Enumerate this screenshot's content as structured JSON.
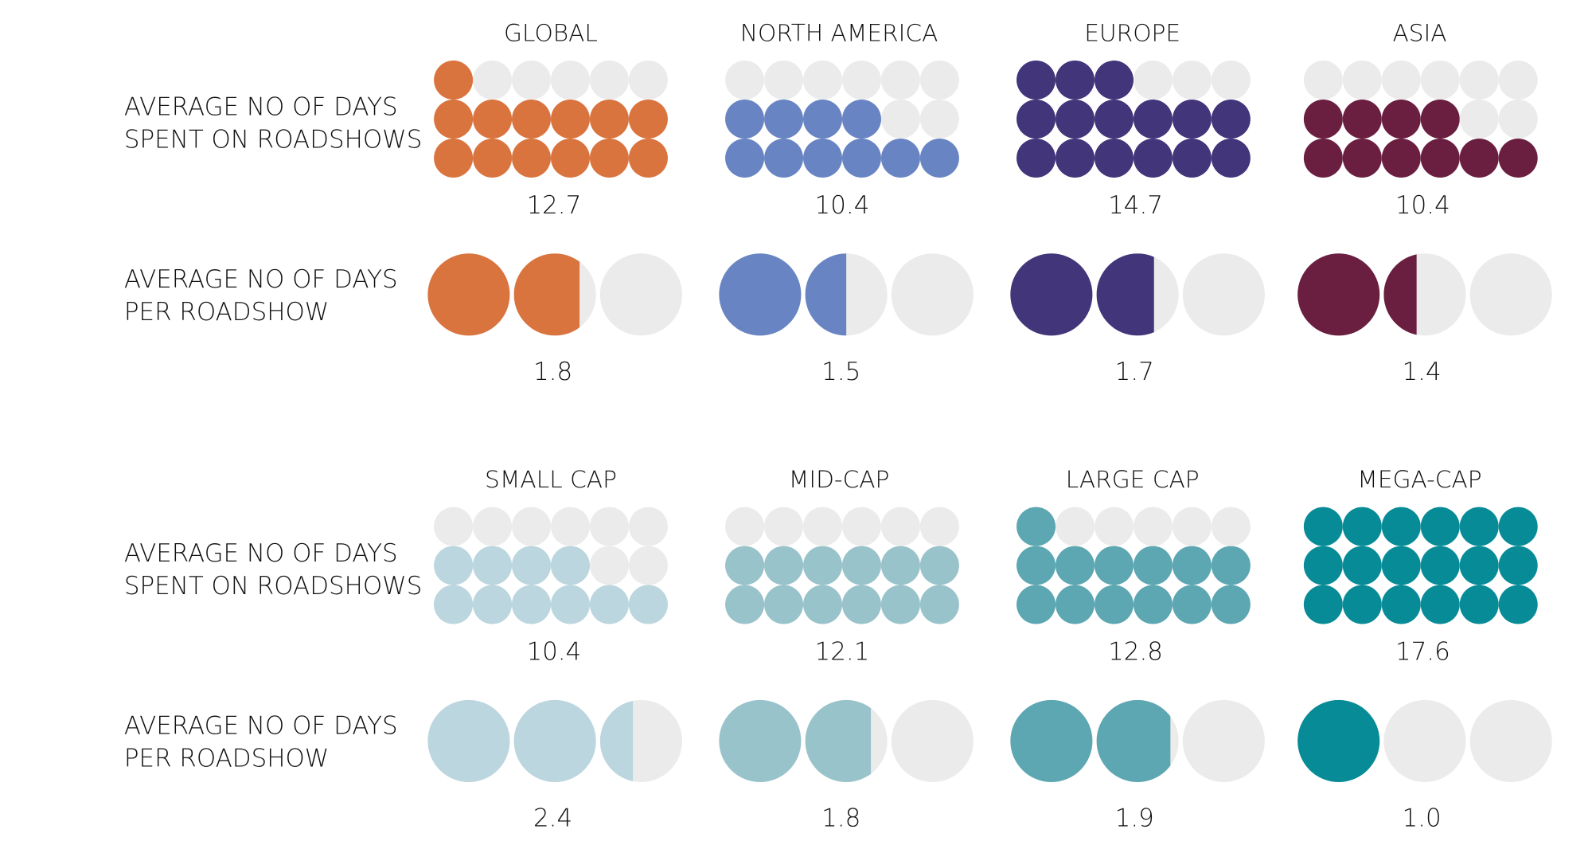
{
  "chart_data": [
    {
      "type": "pictogram",
      "row_labels": {
        "days_spent": [
          "AVERAGE NO OF DAYS",
          "SPENT ON ROADSHOWS"
        ],
        "days_per_roadshow": [
          "AVERAGE NO OF DAYS",
          "PER ROADSHOW"
        ]
      },
      "groups": [
        {
          "name": "GLOBAL",
          "color": "#DA743E",
          "days_spent": 12.7,
          "days_per_roadshow": 1.8
        },
        {
          "name": "NORTH AMERICA",
          "color": "#6884C2",
          "days_spent": 10.4,
          "days_per_roadshow": 1.5
        },
        {
          "name": "EUROPE",
          "color": "#42357A",
          "days_spent": 14.7,
          "days_per_roadshow": 1.7
        },
        {
          "name": "ASIA",
          "color": "#6A1E40",
          "days_spent": 10.4,
          "days_per_roadshow": 1.4
        }
      ],
      "scale": {
        "days_spent_max": 18,
        "days_per_roadshow_max": 3,
        "empty_color": "#EBEBEB"
      }
    },
    {
      "type": "pictogram",
      "row_labels": {
        "days_spent": [
          "AVERAGE NO OF DAYS",
          "SPENT ON ROADSHOWS"
        ],
        "days_per_roadshow": [
          "AVERAGE NO OF DAYS",
          "PER ROADSHOW"
        ]
      },
      "groups": [
        {
          "name": "SMALL CAP",
          "color": "#BBD6DE",
          "days_spent": 10.4,
          "days_per_roadshow": 2.4
        },
        {
          "name": "MID-CAP",
          "color": "#99C3CA",
          "days_spent": 12.1,
          "days_per_roadshow": 1.8
        },
        {
          "name": "LARGE CAP",
          "color": "#5CA7B2",
          "days_spent": 12.8,
          "days_per_roadshow": 1.9
        },
        {
          "name": "MEGA-CAP",
          "color": "#078B97",
          "days_spent": 17.6,
          "days_per_roadshow": 1.0
        }
      ],
      "scale": {
        "days_spent_max": 18,
        "days_per_roadshow_max": 3,
        "empty_color": "#EBEBEB"
      }
    }
  ]
}
